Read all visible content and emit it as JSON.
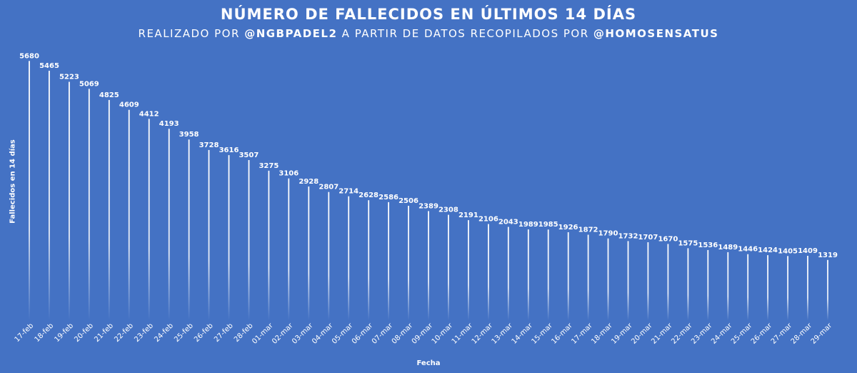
{
  "header": {
    "title": "NÚMERO DE FALLECIDOS EN ÚLTIMOS 14 DÍAS",
    "subtitle_prefix": "REALIZADO POR ",
    "subtitle_author": "@NGBPADEL2",
    "subtitle_middle": " A PARTIR DE DATOS RECOPILADOS POR ",
    "subtitle_source": "@HOMOSENSATUS"
  },
  "colors": {
    "background": "#4472c4",
    "line": "#ffffff",
    "text": "#ffffff"
  },
  "chart_data": {
    "type": "bar",
    "style": "vertical drop lines fading to the baseline, value labels on top",
    "title": "NÚMERO DE FALLECIDOS EN ÚLTIMOS 14 DÍAS",
    "xlabel": "Fecha",
    "ylabel": "Fallecidos en 14 días",
    "grid": false,
    "ylim": [
      0,
      5700
    ],
    "categories": [
      "17-feb",
      "18-feb",
      "19-feb",
      "20-feb",
      "21-feb",
      "22-feb",
      "23-feb",
      "24-feb",
      "25-feb",
      "26-feb",
      "27-feb",
      "28-feb",
      "01-mar",
      "02-mar",
      "03-mar",
      "04-mar",
      "05-mar",
      "06-mar",
      "07-mar",
      "08-mar",
      "09-mar",
      "10-mar",
      "11-mar",
      "12-mar",
      "13-mar",
      "14-mar",
      "15-mar",
      "16-mar",
      "17-mar",
      "18-mar",
      "19-mar",
      "20-mar",
      "21-mar",
      "22-mar",
      "23-mar",
      "24-mar",
      "25-mar",
      "26-mar",
      "27-mar",
      "28-mar",
      "29-mar"
    ],
    "values": [
      5680,
      5465,
      5223,
      5069,
      4825,
      4609,
      4412,
      4193,
      3958,
      3728,
      3616,
      3507,
      3275,
      3106,
      2928,
      2807,
      2714,
      2628,
      2586,
      2506,
      2389,
      2308,
      2191,
      2106,
      2043,
      1989,
      1985,
      1926,
      1872,
      1790,
      1732,
      1707,
      1670,
      1575,
      1536,
      1489,
      1446,
      1424,
      1405,
      1409,
      1319
    ]
  }
}
